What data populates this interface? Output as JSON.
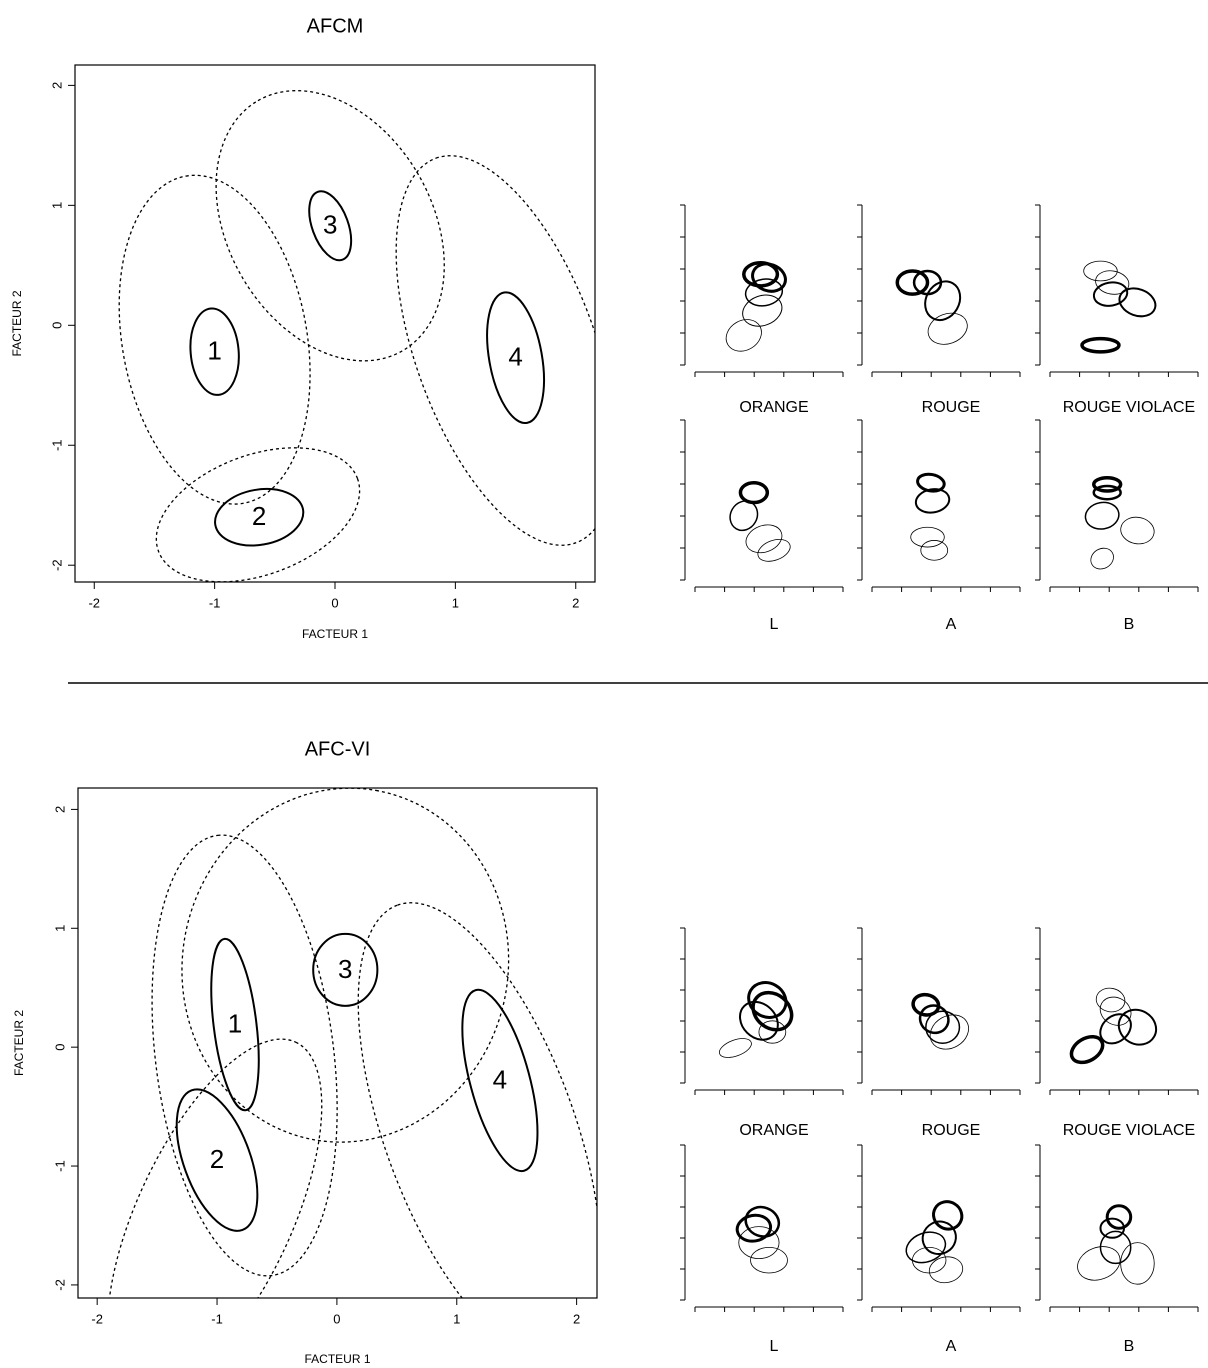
{
  "chart_data": [
    {
      "type": "ellipse",
      "title": "AFCM",
      "xlabel": "FACTEUR 1",
      "ylabel": "FACTEUR 2",
      "xlim": [
        -2.16,
        2.16
      ],
      "ylim": [
        -2.14,
        2.17
      ],
      "xticks": [
        -2,
        -1,
        0,
        1,
        2
      ],
      "yticks": [
        -2,
        -1,
        0,
        1,
        2
      ],
      "groups": [
        {
          "label": "1",
          "inner": [
            -1.0,
            -0.22,
            0.36,
            0.2,
            95
          ],
          "outer": [
            -1.0,
            -0.12,
            1.38,
            0.77,
            100
          ]
        },
        {
          "label": "2",
          "inner": [
            -0.63,
            -1.6,
            0.37,
            0.23,
            10
          ],
          "outer": [
            -0.64,
            -1.58,
            0.88,
            0.5,
            20
          ]
        },
        {
          "label": "3",
          "inner": [
            -0.04,
            0.83,
            0.3,
            0.15,
            110
          ],
          "outer": [
            -0.04,
            0.83,
            1.2,
            0.85,
            120
          ]
        },
        {
          "label": "4",
          "inner": [
            1.5,
            -0.27,
            0.55,
            0.22,
            100
          ],
          "outer": [
            1.42,
            -0.21,
            1.7,
            0.75,
            110
          ]
        }
      ],
      "panels": [
        {
          "label": "ORANGE",
          "ellipses": [
            [
              0.45,
              0.58,
              0.1,
              0.07,
              0,
              3.5
            ],
            [
              0.5,
              0.56,
              0.1,
              0.08,
              -20,
              3
            ],
            [
              0.47,
              0.47,
              0.11,
              0.08,
              10,
              1.5
            ],
            [
              0.46,
              0.36,
              0.12,
              0.09,
              20,
              1
            ],
            [
              0.35,
              0.21,
              0.11,
              0.09,
              30,
              0.8
            ]
          ]
        },
        {
          "label": "ROUGE",
          "ellipses": [
            [
              0.3,
              0.53,
              0.09,
              0.07,
              0,
              3.5
            ],
            [
              0.39,
              0.53,
              0.08,
              0.07,
              0,
              2.5
            ],
            [
              0.48,
              0.42,
              0.12,
              0.1,
              60,
              2
            ],
            [
              0.51,
              0.25,
              0.12,
              0.09,
              20,
              0.8
            ]
          ]
        },
        {
          "label": "ROUGE VIOLACE",
          "ellipses": [
            [
              0.36,
              0.6,
              0.1,
              0.06,
              0,
              0.8
            ],
            [
              0.43,
              0.53,
              0.1,
              0.07,
              -10,
              0.8
            ],
            [
              0.42,
              0.46,
              0.1,
              0.07,
              10,
              2
            ],
            [
              0.58,
              0.41,
              0.11,
              0.08,
              -20,
              2
            ],
            [
              0.36,
              0.15,
              0.11,
              0.04,
              0,
              3.5
            ]
          ]
        },
        {
          "label": "L",
          "ellipses": [
            [
              0.41,
              0.56,
              0.08,
              0.06,
              0,
              3.5
            ],
            [
              0.35,
              0.42,
              0.09,
              0.08,
              60,
              1.5
            ],
            [
              0.47,
              0.28,
              0.11,
              0.08,
              20,
              0.8
            ],
            [
              0.53,
              0.21,
              0.1,
              0.06,
              20,
              0.8
            ]
          ]
        },
        {
          "label": "A",
          "ellipses": [
            [
              0.41,
              0.62,
              0.08,
              0.05,
              -10,
              3
            ],
            [
              0.42,
              0.51,
              0.1,
              0.07,
              10,
              2
            ],
            [
              0.39,
              0.29,
              0.1,
              0.06,
              0,
              0.8
            ],
            [
              0.43,
              0.21,
              0.08,
              0.06,
              0,
              0.8
            ]
          ]
        },
        {
          "label": "B",
          "ellipses": [
            [
              0.4,
              0.61,
              0.08,
              0.04,
              0,
              3.5
            ],
            [
              0.4,
              0.56,
              0.08,
              0.04,
              0,
              2.5
            ],
            [
              0.37,
              0.42,
              0.1,
              0.08,
              10,
              1.5
            ],
            [
              0.58,
              0.33,
              0.1,
              0.08,
              -10,
              0.8
            ],
            [
              0.37,
              0.16,
              0.07,
              0.06,
              30,
              0.8
            ]
          ]
        }
      ]
    },
    {
      "type": "ellipse",
      "title": "AFC-VI",
      "xlabel": "FACTEUR 1",
      "ylabel": "FACTEUR 2",
      "xlim": [
        -2.16,
        2.17
      ],
      "ylim": [
        -2.11,
        2.18
      ],
      "xticks": [
        -2,
        -1,
        0,
        1,
        2
      ],
      "yticks": [
        -2,
        -1,
        0,
        1,
        2
      ],
      "groups": [
        {
          "label": "1",
          "inner": [
            -0.85,
            0.19,
            0.72,
            0.18,
            97
          ],
          "outer": [
            -0.77,
            -0.07,
            1.85,
            0.75,
            97
          ]
        },
        {
          "label": "2",
          "inner": [
            -1.0,
            -0.95,
            0.62,
            0.28,
            110
          ],
          "outer": [
            -1.02,
            -1.42,
            1.6,
            0.65,
            65
          ]
        },
        {
          "label": "3",
          "inner": [
            0.07,
            0.65,
            0.3,
            0.27,
            90
          ],
          "outer": [
            0.07,
            0.69,
            1.48,
            1.37,
            80
          ]
        },
        {
          "label": "4",
          "inner": [
            1.36,
            -0.28,
            0.78,
            0.25,
            105
          ],
          "outer": [
            1.19,
            -0.7,
            2.0,
            0.8,
            110
          ]
        }
      ],
      "panels": [
        {
          "label": "ORANGE",
          "ellipses": [
            [
              0.49,
              0.55,
              0.1,
              0.12,
              60,
              3
            ],
            [
              0.52,
              0.48,
              0.1,
              0.13,
              50,
              3.5
            ],
            [
              0.44,
              0.42,
              0.1,
              0.13,
              45,
              2
            ],
            [
              0.52,
              0.35,
              0.08,
              0.07,
              0,
              0.8
            ],
            [
              0.3,
              0.25,
              0.1,
              0.05,
              20,
              0.8
            ]
          ]
        },
        {
          "label": "ROUGE",
          "ellipses": [
            [
              0.38,
              0.52,
              0.06,
              0.08,
              80,
              3.5
            ],
            [
              0.43,
              0.43,
              0.08,
              0.09,
              60,
              2.5
            ],
            [
              0.48,
              0.38,
              0.1,
              0.1,
              0,
              1.5
            ],
            [
              0.52,
              0.35,
              0.12,
              0.1,
              30,
              0.8
            ]
          ]
        },
        {
          "label": "ROUGE VIOLACE",
          "ellipses": [
            [
              0.42,
              0.55,
              0.07,
              0.09,
              80,
              0.8
            ],
            [
              0.45,
              0.48,
              0.08,
              0.1,
              60,
              0.8
            ],
            [
              0.45,
              0.37,
              0.1,
              0.08,
              40,
              2
            ],
            [
              0.58,
              0.38,
              0.1,
              0.12,
              60,
              2
            ],
            [
              0.28,
              0.24,
              0.1,
              0.07,
              30,
              3.5
            ]
          ]
        },
        {
          "label": "L",
          "ellipses": [
            [
              0.41,
              0.48,
              0.1,
              0.08,
              10,
              3
            ],
            [
              0.46,
              0.52,
              0.1,
              0.09,
              -20,
              2.5
            ],
            [
              0.44,
              0.39,
              0.12,
              0.1,
              0,
              0.8
            ],
            [
              0.5,
              0.28,
              0.11,
              0.08,
              0,
              0.8
            ]
          ]
        },
        {
          "label": "A",
          "ellipses": [
            [
              0.51,
              0.56,
              0.08,
              0.09,
              60,
              3
            ],
            [
              0.46,
              0.42,
              0.1,
              0.1,
              30,
              2
            ],
            [
              0.38,
              0.36,
              0.12,
              0.09,
              20,
              1.5
            ],
            [
              0.4,
              0.28,
              0.1,
              0.08,
              0,
              0.8
            ],
            [
              0.5,
              0.22,
              0.1,
              0.08,
              10,
              0.8
            ]
          ]
        },
        {
          "label": "B",
          "ellipses": [
            [
              0.47,
              0.55,
              0.07,
              0.07,
              0,
              3
            ],
            [
              0.43,
              0.48,
              0.07,
              0.06,
              0,
              2
            ],
            [
              0.45,
              0.36,
              0.09,
              0.1,
              0,
              1.5
            ],
            [
              0.35,
              0.26,
              0.13,
              0.1,
              20,
              0.8
            ],
            [
              0.58,
              0.26,
              0.1,
              0.13,
              0,
              0.8
            ]
          ]
        }
      ]
    }
  ]
}
